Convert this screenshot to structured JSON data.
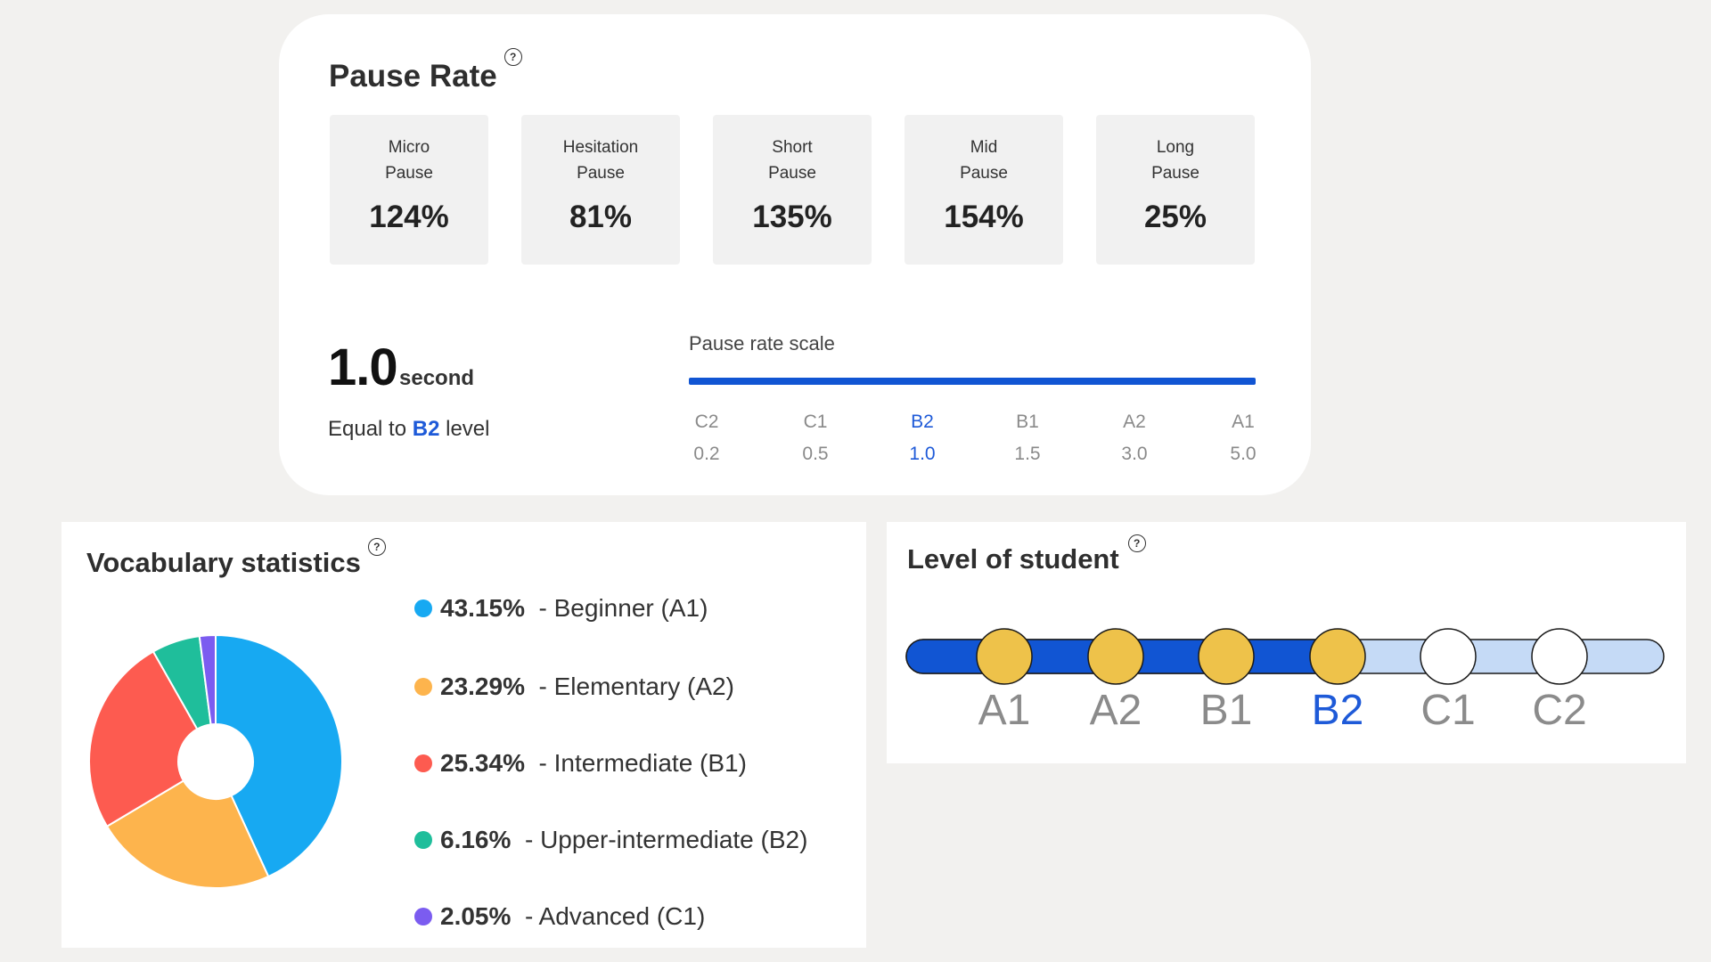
{
  "pause_rate": {
    "title": "Pause Rate",
    "help": "?",
    "boxes": [
      {
        "label": "Micro\nPause",
        "value": "124%"
      },
      {
        "label": "Hesitation\nPause",
        "value": "81%"
      },
      {
        "label": "Short\nPause",
        "value": "135%"
      },
      {
        "label": "Mid\nPause",
        "value": "154%"
      },
      {
        "label": "Long\nPause",
        "value": "25%"
      }
    ],
    "seconds_value": "1.0",
    "seconds_unit": "second",
    "equal_prefix": "Equal to",
    "equal_level": "B2",
    "equal_suffix": "level",
    "scale_title": "Pause rate scale",
    "scale_color": "#1155d3",
    "scale": [
      {
        "level": "C2",
        "value": "0.2"
      },
      {
        "level": "C1",
        "value": "0.5"
      },
      {
        "level": "B2",
        "value": "1.0"
      },
      {
        "level": "B1",
        "value": "1.5"
      },
      {
        "level": "A2",
        "value": "3.0"
      },
      {
        "level": "A1",
        "value": "5.0"
      }
    ]
  },
  "vocabulary": {
    "title": "Vocabulary statistics",
    "help": "?",
    "items": [
      {
        "percent": "43.15%",
        "label": "- Beginner (A1)",
        "color": "#17a9f2"
      },
      {
        "percent": "23.29%",
        "label": "- Elementary (A2)",
        "color": "#fdb44d"
      },
      {
        "percent": "25.34%",
        "label": "- Intermediate (B1)",
        "color": "#fd5b50"
      },
      {
        "percent": "6.16%",
        "label": "- Upper-intermediate (B2)",
        "color": "#1fbe9b"
      },
      {
        "percent": "2.05%",
        "label": "- Advanced (C1)",
        "color": "#7b5cf0"
      }
    ]
  },
  "chart_data": {
    "type": "pie",
    "categories": [
      "Beginner (A1)",
      "Elementary (A2)",
      "Intermediate (B1)",
      "Upper-intermediate (B2)",
      "Advanced (C1)"
    ],
    "values": [
      43.15,
      23.29,
      25.34,
      6.16,
      2.05
    ],
    "colors": [
      "#17a9f2",
      "#fdb44d",
      "#fd5b50",
      "#1fbe9b",
      "#7b5cf0"
    ]
  },
  "level": {
    "title": "Level of student",
    "help": "?",
    "levels": [
      "A1",
      "A2",
      "B1",
      "B2",
      "C1",
      "C2"
    ],
    "current_level": "B2",
    "achieved_count": 4,
    "colors": {
      "track_filled": "#1155d3",
      "track_empty": "#c5daf6",
      "node_filled": "#eec24a",
      "node_empty": "#ffffff"
    }
  }
}
